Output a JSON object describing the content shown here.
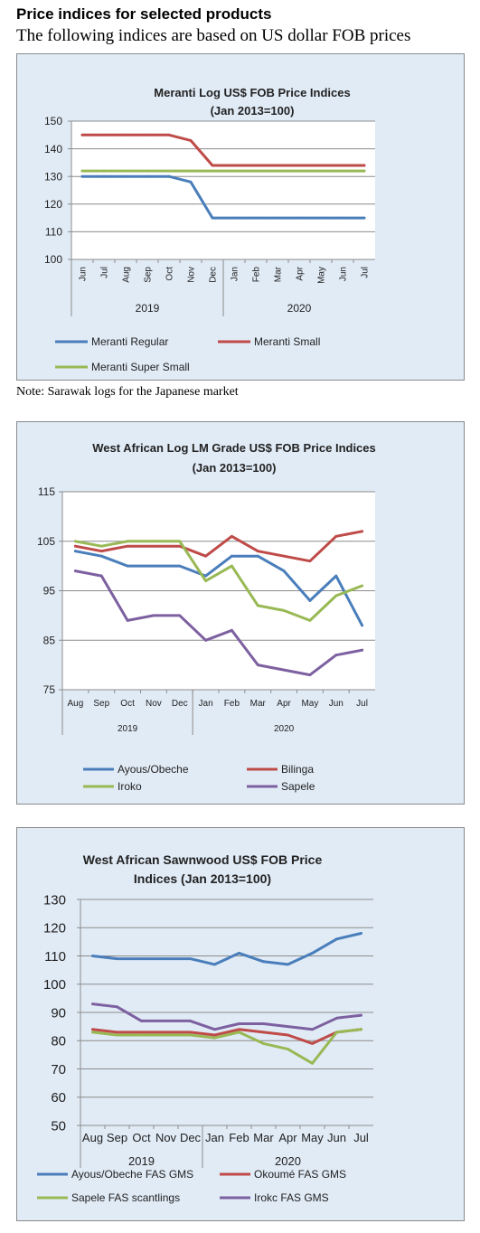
{
  "page": {
    "title": "Price indices for selected products",
    "subtitle": "The following indices are based on US dollar FOB prices",
    "note": "Note: Sarawak logs for the Japanese market"
  },
  "chart_data": [
    {
      "type": "line",
      "title": "Meranti Log US$ FOB Price Indices",
      "subtitle": "(Jan 2013=100)",
      "categories": [
        "Jun",
        "Jul",
        "Aug",
        "Sep",
        "Oct",
        "Nov",
        "Dec",
        "Jan",
        "Feb",
        "Mar",
        "Apr",
        "May",
        "Jun",
        "Jul"
      ],
      "groups": [
        {
          "label": "2019",
          "start": 0,
          "end": 6
        },
        {
          "label": "2020",
          "start": 7,
          "end": 13
        }
      ],
      "ylim": [
        100,
        150
      ],
      "yticks": [
        100,
        110,
        120,
        130,
        140,
        150
      ],
      "grid": true,
      "legend_position": "bottom",
      "series": [
        {
          "name": "Meranti Regular",
          "color": "#4a7ebb",
          "values": [
            130,
            130,
            130,
            130,
            130,
            128,
            115,
            115,
            115,
            115,
            115,
            115,
            115,
            115
          ]
        },
        {
          "name": "Meranti Small",
          "color": "#be4b48",
          "values": [
            145,
            145,
            145,
            145,
            145,
            143,
            134,
            134,
            134,
            134,
            134,
            134,
            134,
            134
          ]
        },
        {
          "name": "Meranti Super Small",
          "color": "#98b954",
          "values": [
            132,
            132,
            132,
            132,
            132,
            132,
            132,
            132,
            132,
            132,
            132,
            132,
            132,
            132
          ]
        }
      ]
    },
    {
      "type": "line",
      "title": "West African Log LM Grade US$ FOB Price Indices",
      "subtitle": "(Jan 2013=100)",
      "categories": [
        "Aug",
        "Sep",
        "Oct",
        "Nov",
        "Dec",
        "Jan",
        "Feb",
        "Mar",
        "Apr",
        "May",
        "Jun",
        "Jul"
      ],
      "groups": [
        {
          "label": "2019",
          "start": 0,
          "end": 4
        },
        {
          "label": "2020",
          "start": 5,
          "end": 11
        }
      ],
      "ylim": [
        75,
        115
      ],
      "yticks": [
        75,
        85,
        95,
        105,
        115
      ],
      "grid": true,
      "legend_position": "bottom",
      "series": [
        {
          "name": "Ayous/Obeche",
          "color": "#4a7ebb",
          "values": [
            103,
            102,
            100,
            100,
            100,
            98,
            102,
            102,
            99,
            93,
            98,
            88
          ]
        },
        {
          "name": "Bilinga",
          "color": "#be4b48",
          "values": [
            104,
            103,
            104,
            104,
            104,
            102,
            106,
            103,
            102,
            101,
            106,
            107
          ]
        },
        {
          "name": "Iroko",
          "color": "#98b954",
          "values": [
            105,
            104,
            105,
            105,
            105,
            97,
            100,
            92,
            91,
            89,
            94,
            96
          ]
        },
        {
          "name": "Sapele",
          "color": "#7d60a0",
          "values": [
            99,
            98,
            89,
            90,
            90,
            85,
            87,
            80,
            79,
            78,
            82,
            83
          ]
        }
      ]
    },
    {
      "type": "line",
      "title": "West African Sawnwood US$ FOB Price",
      "subtitle": "Indices (Jan 2013=100)",
      "categories": [
        "Aug",
        "Sep",
        "Oct",
        "Nov",
        "Dec",
        "Jan",
        "Feb",
        "Mar",
        "Apr",
        "May",
        "Jun",
        "Jul"
      ],
      "groups": [
        {
          "label": "2019",
          "start": 0,
          "end": 4
        },
        {
          "label": "2020",
          "start": 5,
          "end": 11
        }
      ],
      "ylim": [
        50,
        130
      ],
      "yticks": [
        50,
        60,
        70,
        80,
        90,
        100,
        110,
        120,
        130
      ],
      "grid": true,
      "legend_position": "bottom",
      "series": [
        {
          "name": "Ayous/Obeche FAS GMS",
          "color": "#4a7ebb",
          "values": [
            110,
            109,
            109,
            109,
            109,
            107,
            111,
            108,
            107,
            111,
            116,
            118
          ]
        },
        {
          "name": "Okoumé  FAS GMS",
          "color": "#be4b48",
          "values": [
            84,
            83,
            83,
            83,
            83,
            82,
            84,
            83,
            82,
            79,
            83,
            84
          ]
        },
        {
          "name": "Sapele FAS scantlings",
          "color": "#98b954",
          "values": [
            83,
            82,
            82,
            82,
            82,
            81,
            83,
            79,
            77,
            72,
            83,
            84
          ]
        },
        {
          "name": "Irokc FAS GMS",
          "color": "#7d60a0",
          "values": [
            93,
            92,
            87,
            87,
            87,
            84,
            86,
            86,
            85,
            84,
            88,
            89
          ]
        }
      ]
    }
  ]
}
